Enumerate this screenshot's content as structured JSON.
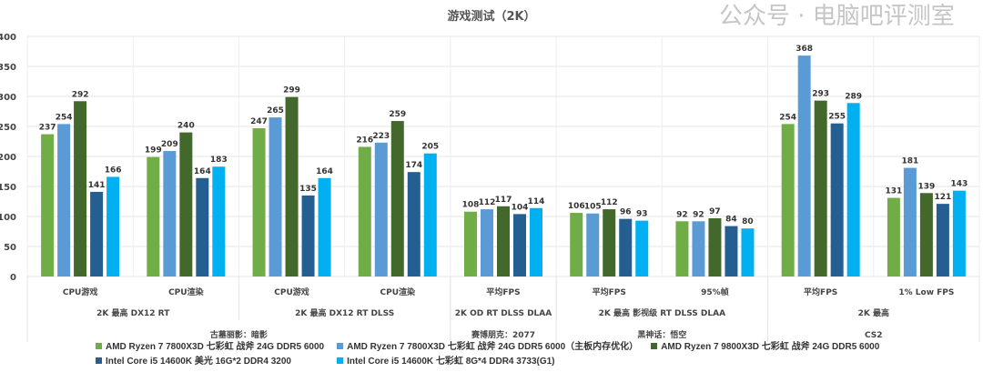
{
  "chart_data": {
    "type": "bar",
    "title": "游戏测试（2K）",
    "categories": [
      "CPU游戏",
      "CPU渲染",
      "CPU游戏",
      "CPU渲染",
      "平均FPS",
      "平均FPS",
      "95%帧",
      "平均FPS",
      "1% Low FPS"
    ],
    "category_level2": [
      {
        "label": "2K 最高 DX12 RT",
        "span": 2
      },
      {
        "label": "2K 最高 DX12 RT DLSS",
        "span": 2
      },
      {
        "label": "2K OD RT DLSS DLAA",
        "span": 1
      },
      {
        "label": "2K 最高 影视级 RT DLSS DLAA",
        "span": 2
      },
      {
        "label": "2K 最高",
        "span": 2
      }
    ],
    "category_level3": [
      {
        "label": "古墓丽影：暗影",
        "span": 4
      },
      {
        "label": "赛博朋克：2077",
        "span": 1
      },
      {
        "label": "黑神话：悟空",
        "span": 2
      },
      {
        "label": "CS2",
        "span": 2
      }
    ],
    "series": [
      {
        "name": "AMD Ryzen 7 7800X3D 七彩虹 战斧 24G DDR5 6000",
        "color": "#70ad47",
        "values": [
          237,
          199,
          247,
          216,
          108,
          106,
          92,
          254,
          131
        ]
      },
      {
        "name": "AMD Ryzen 7 7800X3D 七彩虹 战斧 24G DDR5 6000（主板内存优化）",
        "color": "#5b9bd5",
        "values": [
          254,
          209,
          265,
          223,
          112,
          105,
          92,
          368,
          181
        ]
      },
      {
        "name": "AMD Ryzen 7 9800X3D 七彩虹 战斧 24G DDR5 6000",
        "color": "#43682b",
        "values": [
          292,
          240,
          299,
          259,
          117,
          112,
          97,
          293,
          139
        ]
      },
      {
        "name": "Intel Core i5 14600K 美光 16G*2 DDR4 3200",
        "color": "#255e91",
        "values": [
          141,
          164,
          135,
          174,
          104,
          96,
          84,
          255,
          121
        ]
      },
      {
        "name": "Intel Core i5 14600K 七彩虹 8G*4 DDR4 3733(G1)",
        "color": "#00b0f0",
        "values": [
          166,
          183,
          164,
          205,
          114,
          93,
          80,
          289,
          143
        ]
      }
    ],
    "ylim": [
      0,
      400
    ],
    "yticks": [
      0,
      50,
      100,
      150,
      200,
      250,
      300,
      350,
      400
    ],
    "grid": true,
    "legend_position": "bottom",
    "data_labels": true
  },
  "watermark": "公众号 · 电脑吧评测室"
}
